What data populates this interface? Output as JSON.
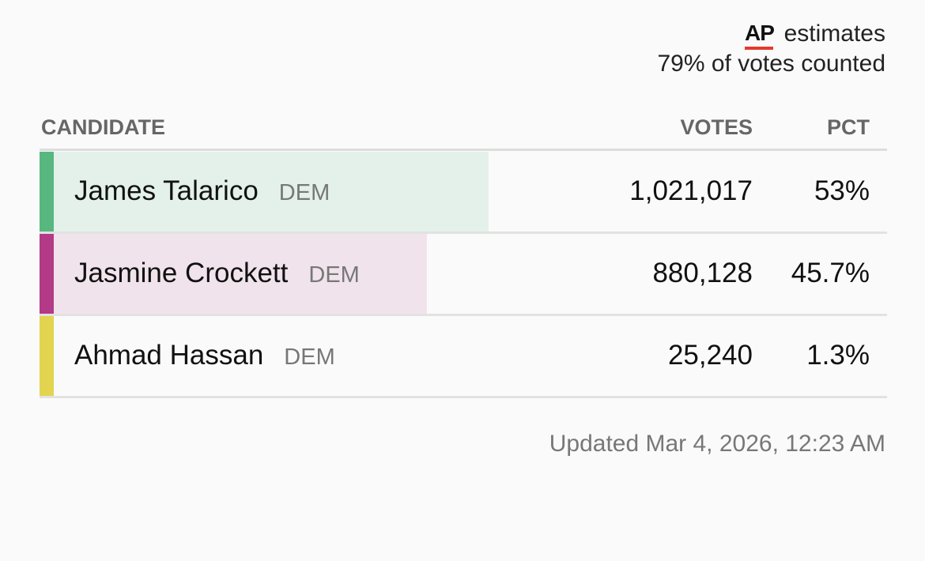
{
  "header": {
    "logo": "AP",
    "estimates": "estimates",
    "counted": "79% of votes counted"
  },
  "table": {
    "columns": [
      "CANDIDATE",
      "VOTES",
      "PCT"
    ],
    "rows": [
      {
        "name": "James Talarico",
        "party": "DEM",
        "votes": "1,021,017",
        "pct": 53,
        "pct_label": "53%",
        "color": "#58b77f",
        "tint": "#e3f1ea"
      },
      {
        "name": "Jasmine Crockett",
        "party": "DEM",
        "votes": "880,128",
        "pct": 45.7,
        "pct_label": "45.7%",
        "color": "#b23a86",
        "tint": "#f1e3ec"
      },
      {
        "name": "Ahmad Hassan",
        "party": "DEM",
        "votes": "25,240",
        "pct": 1.3,
        "pct_label": "1.3%",
        "color": "#e2d44f",
        "tint": "#f6f3dc"
      }
    ]
  },
  "footer": {
    "updated": "Updated Mar 4, 2026, 12:23 AM"
  }
}
